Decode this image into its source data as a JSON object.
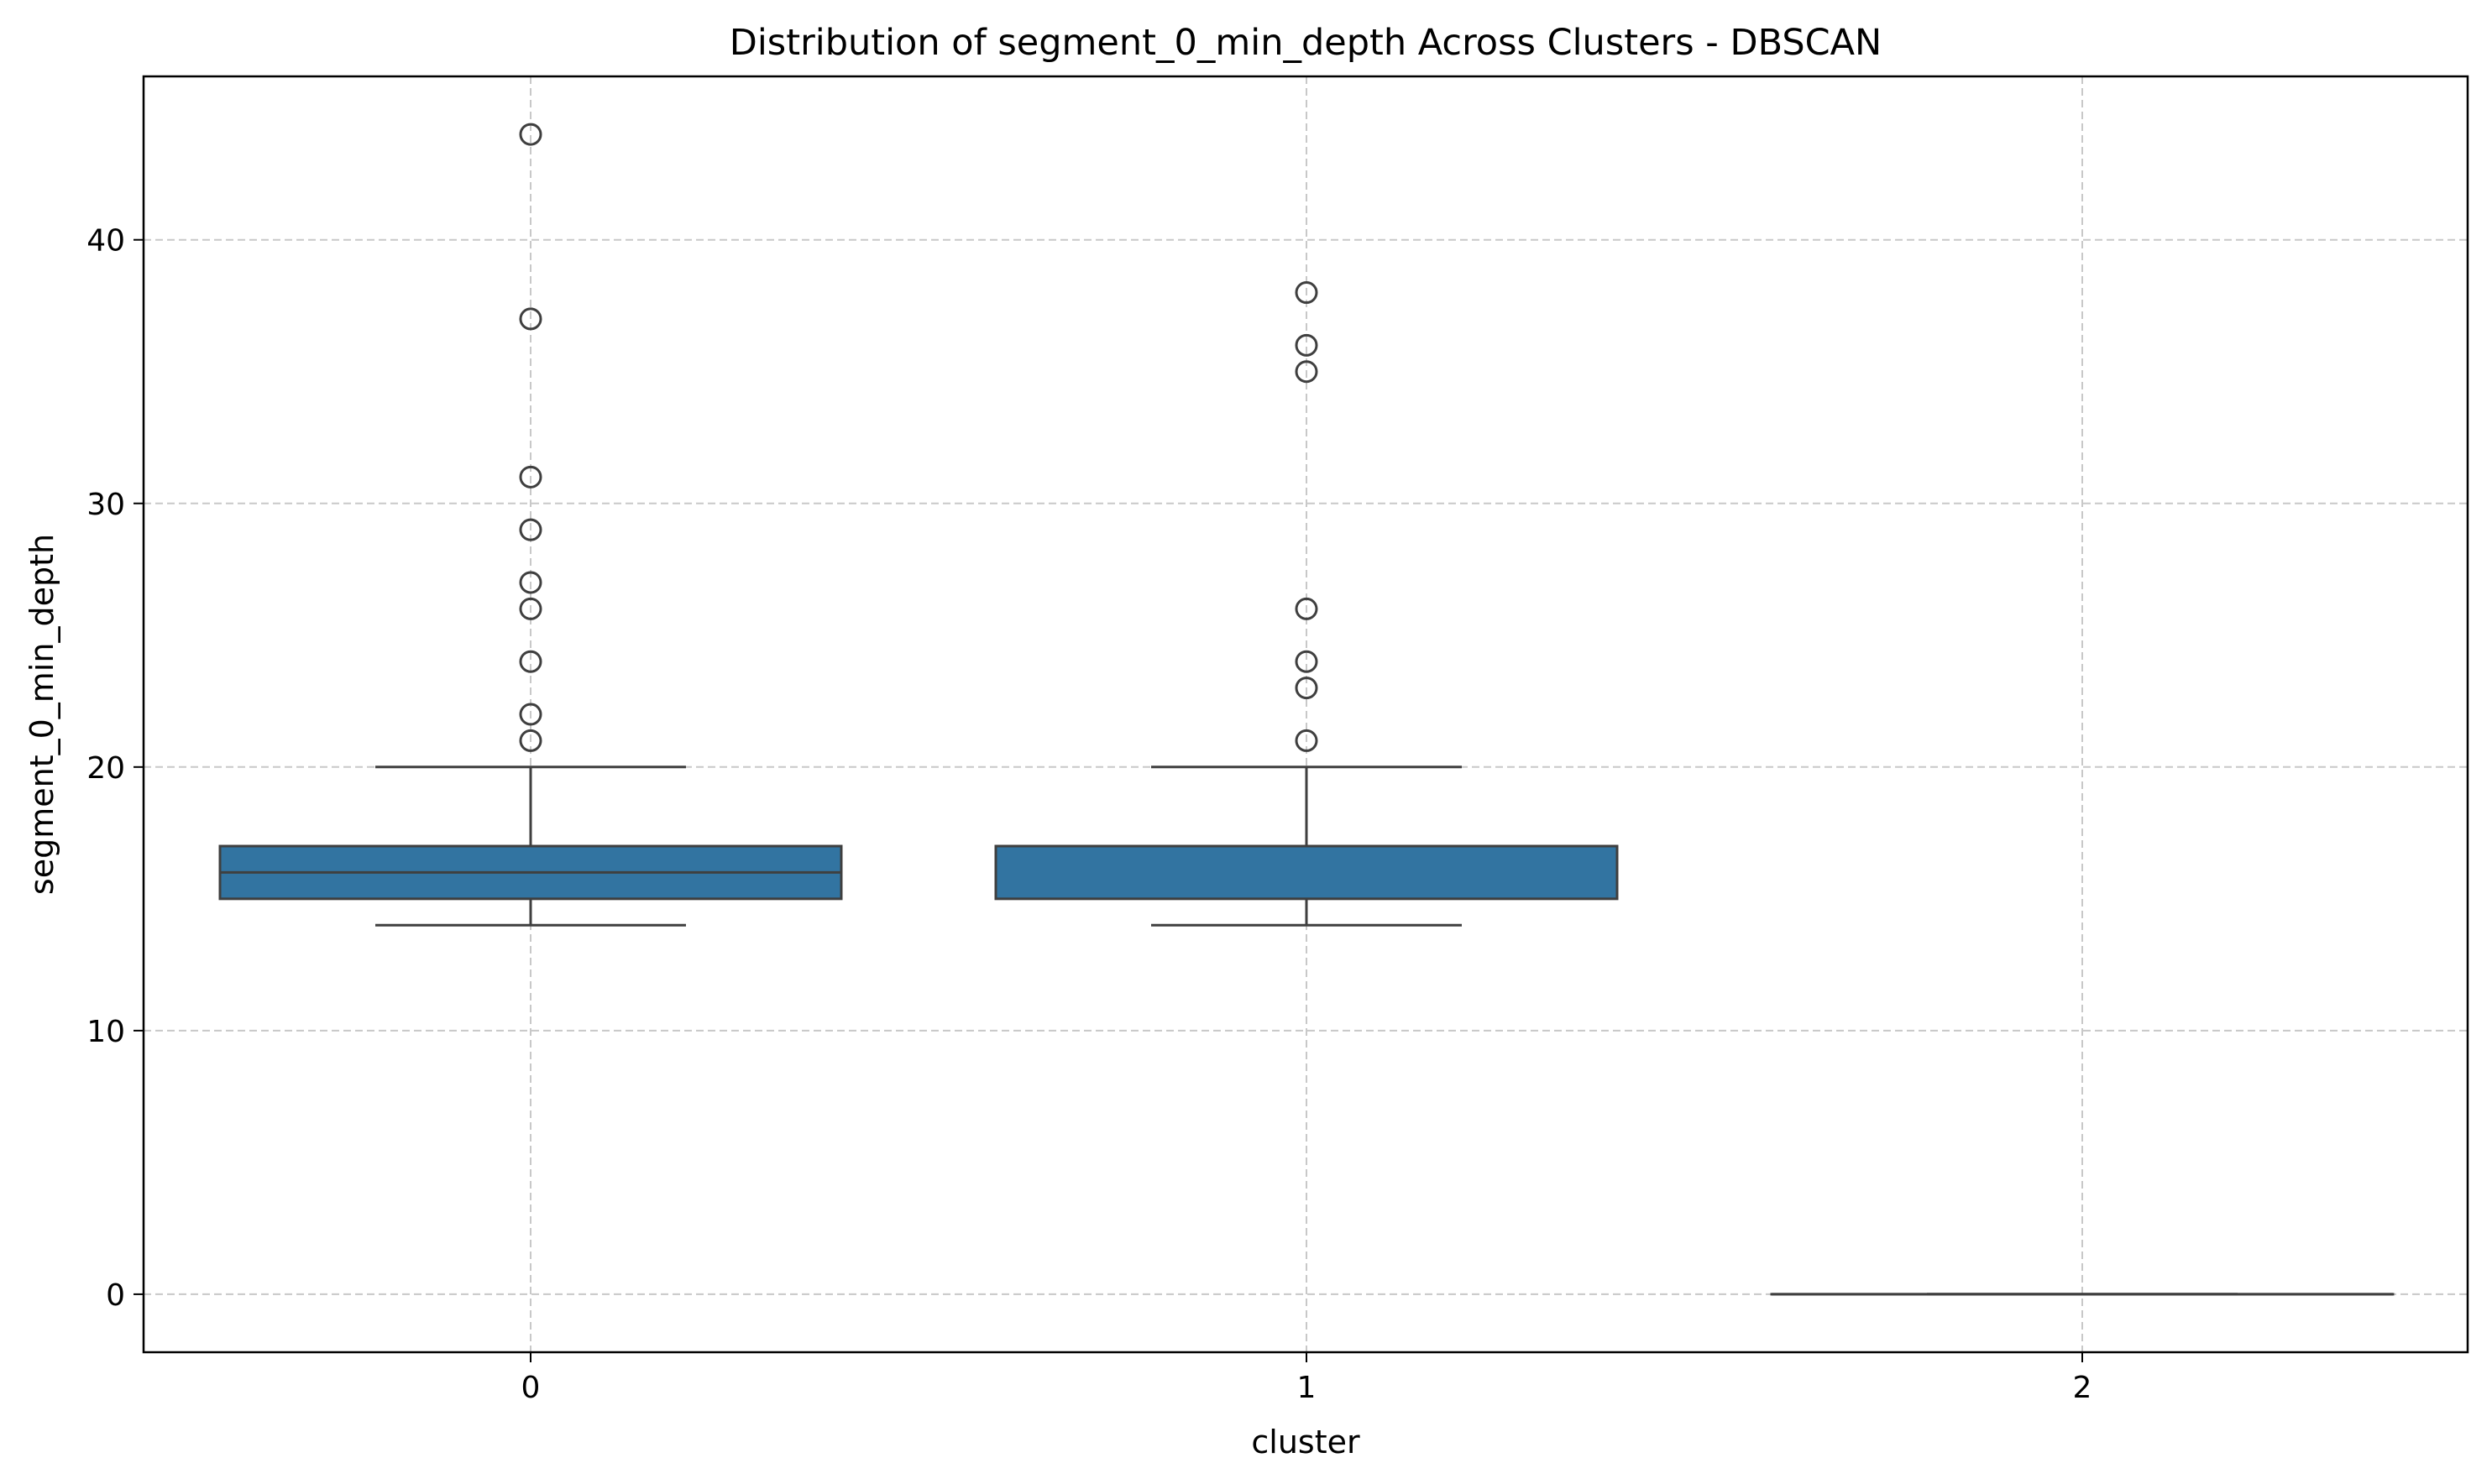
{
  "chart_data": {
    "type": "box",
    "title": "Distribution of segment_0_min_depth Across Clusters - DBSCAN",
    "xlabel": "cluster",
    "ylabel": "segment_0_min_depth",
    "categories": [
      "0",
      "1",
      "2"
    ],
    "ylim": [
      -2.2,
      46.2
    ],
    "yticks": [
      0,
      10,
      20,
      30,
      40
    ],
    "grid": true,
    "grid_style": "dashed",
    "box_color": "#3274a1",
    "edge_color": "#3f3f3f",
    "boxes": [
      {
        "category": "0",
        "whisker_low": 14,
        "q1": 15,
        "median": 16,
        "q3": 17,
        "whisker_high": 20,
        "outliers": [
          21,
          22,
          24,
          26,
          27,
          29,
          31,
          37,
          44
        ]
      },
      {
        "category": "1",
        "whisker_low": 14,
        "q1": 15,
        "median": 17,
        "q3": 17,
        "whisker_high": 20,
        "outliers": [
          21,
          23,
          24,
          26,
          35,
          36,
          38
        ]
      },
      {
        "category": "2",
        "whisker_low": 0,
        "q1": 0,
        "median": 0,
        "q3": 0,
        "whisker_high": 0,
        "outliers": []
      }
    ]
  }
}
